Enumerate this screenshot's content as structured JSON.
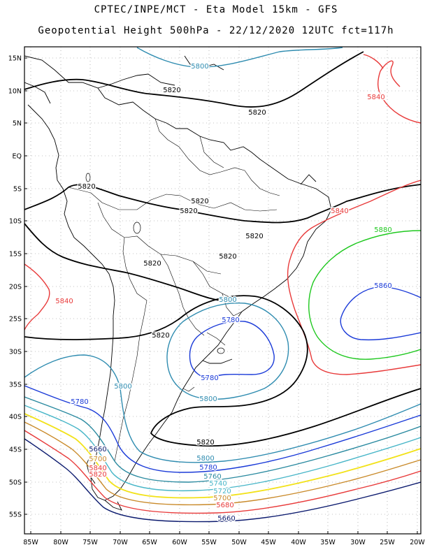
{
  "header": {
    "title": "CPTEC/INPE/MCT -  Eta Model 15km - GFS",
    "subtitle": "Geopotential Height 500hPa - 22/12/2020 12UTC fct=117h"
  },
  "axes": {
    "lat_labels": [
      "15N",
      "10N",
      "5N",
      "EQ",
      "5S",
      "10S",
      "15S",
      "20S",
      "25S",
      "30S",
      "35S",
      "40S",
      "45S",
      "50S",
      "55S"
    ],
    "lon_labels": [
      "85W",
      "80W",
      "75W",
      "70W",
      "65W",
      "60W",
      "55W",
      "50W",
      "45W",
      "40W",
      "35W",
      "30W",
      "25W",
      "20W"
    ]
  },
  "colors": {
    "c5660": "#0b1a6e",
    "c5680": "#e83a3a",
    "c5700": "#c98a2a",
    "c5720": "#f2e21a",
    "c5740": "#48b6c8",
    "c5760": "#2a8aa0",
    "c5780": "#1a3ad8",
    "c5800": "#2f8cb0",
    "c5820": "#000000",
    "c5840": "#e83a3a",
    "c5860": "#1a3ad8",
    "c5880": "#1ec81e"
  },
  "contour_labels": [
    {
      "text": "5800"
    },
    {
      "text": "5820"
    },
    {
      "text": "5840"
    },
    {
      "text": "5820"
    },
    {
      "text": "5820"
    },
    {
      "text": "5820"
    },
    {
      "text": "5820"
    },
    {
      "text": "5840"
    },
    {
      "text": "5880"
    },
    {
      "text": "5820"
    },
    {
      "text": "5820"
    },
    {
      "text": "5820"
    },
    {
      "text": "5860"
    },
    {
      "text": "5840"
    },
    {
      "text": "5800"
    },
    {
      "text": "5780"
    },
    {
      "text": "5820"
    },
    {
      "text": "5780"
    },
    {
      "text": "5800"
    },
    {
      "text": "5780"
    },
    {
      "text": "5800"
    },
    {
      "text": "5820"
    },
    {
      "text": "5800"
    },
    {
      "text": "5780"
    },
    {
      "text": "5760"
    },
    {
      "text": "5740"
    },
    {
      "text": "5720"
    },
    {
      "text": "5700"
    },
    {
      "text": "5680"
    },
    {
      "text": "5660"
    },
    {
      "text": "5840"
    },
    {
      "text": "5820"
    },
    {
      "text": "5700"
    },
    {
      "text": "5660"
    }
  ]
}
